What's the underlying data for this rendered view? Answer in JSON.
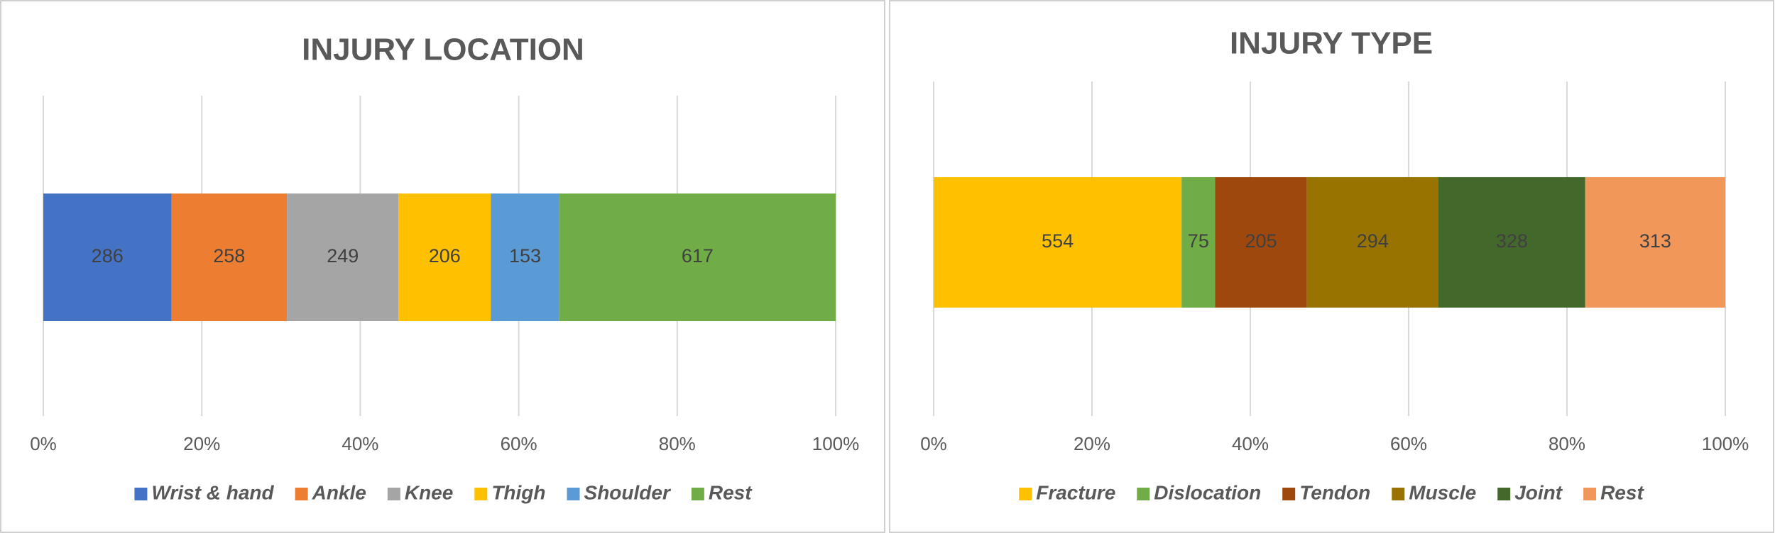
{
  "chart_data": [
    {
      "type": "bar",
      "stacking": "percent",
      "orientation": "horizontal",
      "title": "INJURY LOCATION",
      "series": [
        {
          "name": "Wrist & hand",
          "color": "#4472c4",
          "values": [
            286
          ]
        },
        {
          "name": "Ankle",
          "color": "#ed7d31",
          "values": [
            258
          ]
        },
        {
          "name": "Knee",
          "color": "#a5a5a5",
          "values": [
            249
          ]
        },
        {
          "name": "Thigh",
          "color": "#ffc000",
          "values": [
            206
          ]
        },
        {
          "name": "Shoulder",
          "color": "#5b9bd5",
          "values": [
            153
          ]
        },
        {
          "name": "Rest",
          "color": "#70ad47",
          "values": [
            617
          ]
        }
      ],
      "xlim": [
        0,
        100
      ],
      "xticks": [
        {
          "value": 0,
          "label": "0%"
        },
        {
          "value": 20,
          "label": "20%"
        },
        {
          "value": 40,
          "label": "40%"
        },
        {
          "value": 60,
          "label": "60%"
        },
        {
          "value": 80,
          "label": "80%"
        },
        {
          "value": 100,
          "label": "100%"
        }
      ],
      "grid": true,
      "legend": "bottom"
    },
    {
      "type": "bar",
      "stacking": "percent",
      "orientation": "horizontal",
      "title": "INJURY TYPE",
      "series": [
        {
          "name": "Fracture",
          "color": "#ffc000",
          "values": [
            554
          ]
        },
        {
          "name": "Dislocation",
          "color": "#70ad47",
          "values": [
            75
          ]
        },
        {
          "name": "Tendon",
          "color": "#9e480e",
          "values": [
            205
          ]
        },
        {
          "name": "Muscle",
          "color": "#997300",
          "values": [
            294
          ]
        },
        {
          "name": "Joint",
          "color": "#43682b",
          "values": [
            328
          ]
        },
        {
          "name": "Rest",
          "color": "#f1975a",
          "values": [
            313
          ]
        }
      ],
      "xlim": [
        0,
        100
      ],
      "xticks": [
        {
          "value": 0,
          "label": "0%"
        },
        {
          "value": 20,
          "label": "20%"
        },
        {
          "value": 40,
          "label": "40%"
        },
        {
          "value": 60,
          "label": "60%"
        },
        {
          "value": 80,
          "label": "80%"
        },
        {
          "value": 100,
          "label": "100%"
        }
      ],
      "grid": true,
      "legend": "bottom"
    }
  ]
}
